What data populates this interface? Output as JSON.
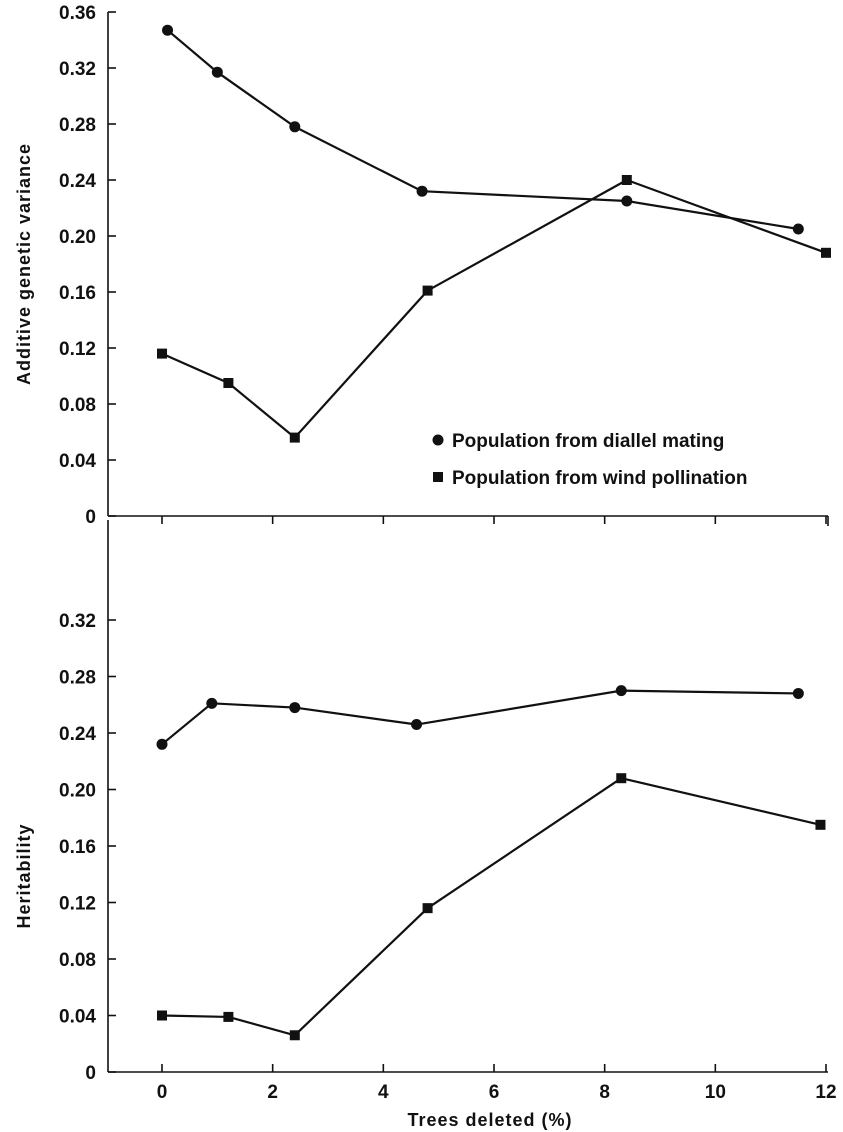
{
  "chart_data": [
    {
      "type": "line",
      "panel": "top",
      "ylabel": "Additive genetic variance",
      "xlim": [
        -1,
        12
      ],
      "ylim": [
        0,
        0.36
      ],
      "yticks": [
        "0",
        "0.04",
        "0.08",
        "0.12",
        "0.16",
        "0.20",
        "0.24",
        "0.28",
        "0.32",
        "0.36"
      ],
      "legend": {
        "placement": "lower-right",
        "entries": [
          {
            "label": "Population from diallel mating",
            "marker": "circle"
          },
          {
            "label": "Population from wind pollination",
            "marker": "square"
          }
        ]
      },
      "series": [
        {
          "name": "Population from diallel mating",
          "marker": "circle",
          "x": [
            0.1,
            1.0,
            2.4,
            4.7,
            8.4,
            11.5
          ],
          "y": [
            0.347,
            0.317,
            0.278,
            0.232,
            0.225,
            0.205
          ]
        },
        {
          "name": "Population from wind pollination",
          "marker": "square",
          "x": [
            0.0,
            1.2,
            2.4,
            4.8,
            8.4,
            12.0
          ],
          "y": [
            0.116,
            0.095,
            0.056,
            0.161,
            0.24,
            0.188
          ]
        }
      ]
    },
    {
      "type": "line",
      "panel": "bottom",
      "xlabel": "Trees deleted (%)",
      "ylabel": "Heritability",
      "xlim": [
        -1,
        12
      ],
      "ylim": [
        0,
        0.36
      ],
      "xticks": [
        "0",
        "2",
        "4",
        "6",
        "8",
        "10",
        "12"
      ],
      "yticks": [
        "0",
        "0.04",
        "0.08",
        "0.12",
        "0.16",
        "0.20",
        "0.24",
        "0.28",
        "0.32"
      ],
      "series": [
        {
          "name": "Population from diallel mating",
          "marker": "circle",
          "x": [
            0.0,
            0.9,
            2.4,
            4.6,
            8.3,
            11.5
          ],
          "y": [
            0.232,
            0.261,
            0.258,
            0.246,
            0.27,
            0.268
          ]
        },
        {
          "name": "Population from wind pollination",
          "marker": "square",
          "x": [
            0.0,
            1.2,
            2.4,
            4.8,
            8.3,
            11.9
          ],
          "y": [
            0.04,
            0.039,
            0.026,
            0.116,
            0.208,
            0.175
          ]
        }
      ]
    }
  ]
}
